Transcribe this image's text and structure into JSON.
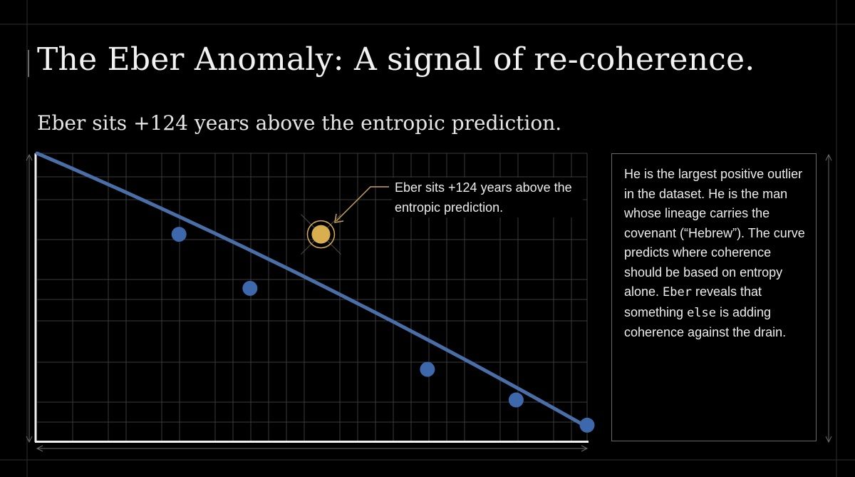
{
  "slide": {
    "title": "The Eber Anomaly: A signal of re-coherence.",
    "subtitle": "Eber sits +124 years above the entropic prediction."
  },
  "sidebar": {
    "segments": [
      {
        "text": "He is the largest positive outlier in the dataset. He is the man whose lineage carries the covenant (“Hebrew”). The curve predicts where coherence should be based on entropy alone. ",
        "mono": false
      },
      {
        "text": "Eber",
        "mono": true
      },
      {
        "text": " reveals that something ",
        "mono": false
      },
      {
        "text": "else",
        "mono": true
      },
      {
        "text": " is adding coherence against the drain.",
        "mono": false
      }
    ]
  },
  "colors": {
    "background": "#000000",
    "grid": "#3a3a3a",
    "trend": "#4a6fa8",
    "points": "#3d68ab",
    "outlier": "#d9ae4e",
    "annotation_arrow": "#c9a455"
  },
  "chart_data": {
    "type": "scatter",
    "title": "",
    "xlabel": "",
    "ylabel": "",
    "xlim": [
      0,
      31
    ],
    "ylim": [
      0,
      16
    ],
    "grid": true,
    "trend_line": {
      "x": [
        0,
        31
      ],
      "y": [
        16,
        0.8
      ]
    },
    "series": [
      {
        "values": [
          {
            "x": 8,
            "y": 11.5
          },
          {
            "x": 12,
            "y": 8.5
          },
          {
            "x": 22,
            "y": 4
          },
          {
            "x": 27,
            "y": 2.3
          },
          {
            "x": 31,
            "y": 0.9
          }
        ]
      }
    ],
    "outlier": {
      "x": 16,
      "y": 11.5,
      "label": "Eber"
    },
    "annotation": "Eber sits +124 years above the entropic prediction."
  }
}
